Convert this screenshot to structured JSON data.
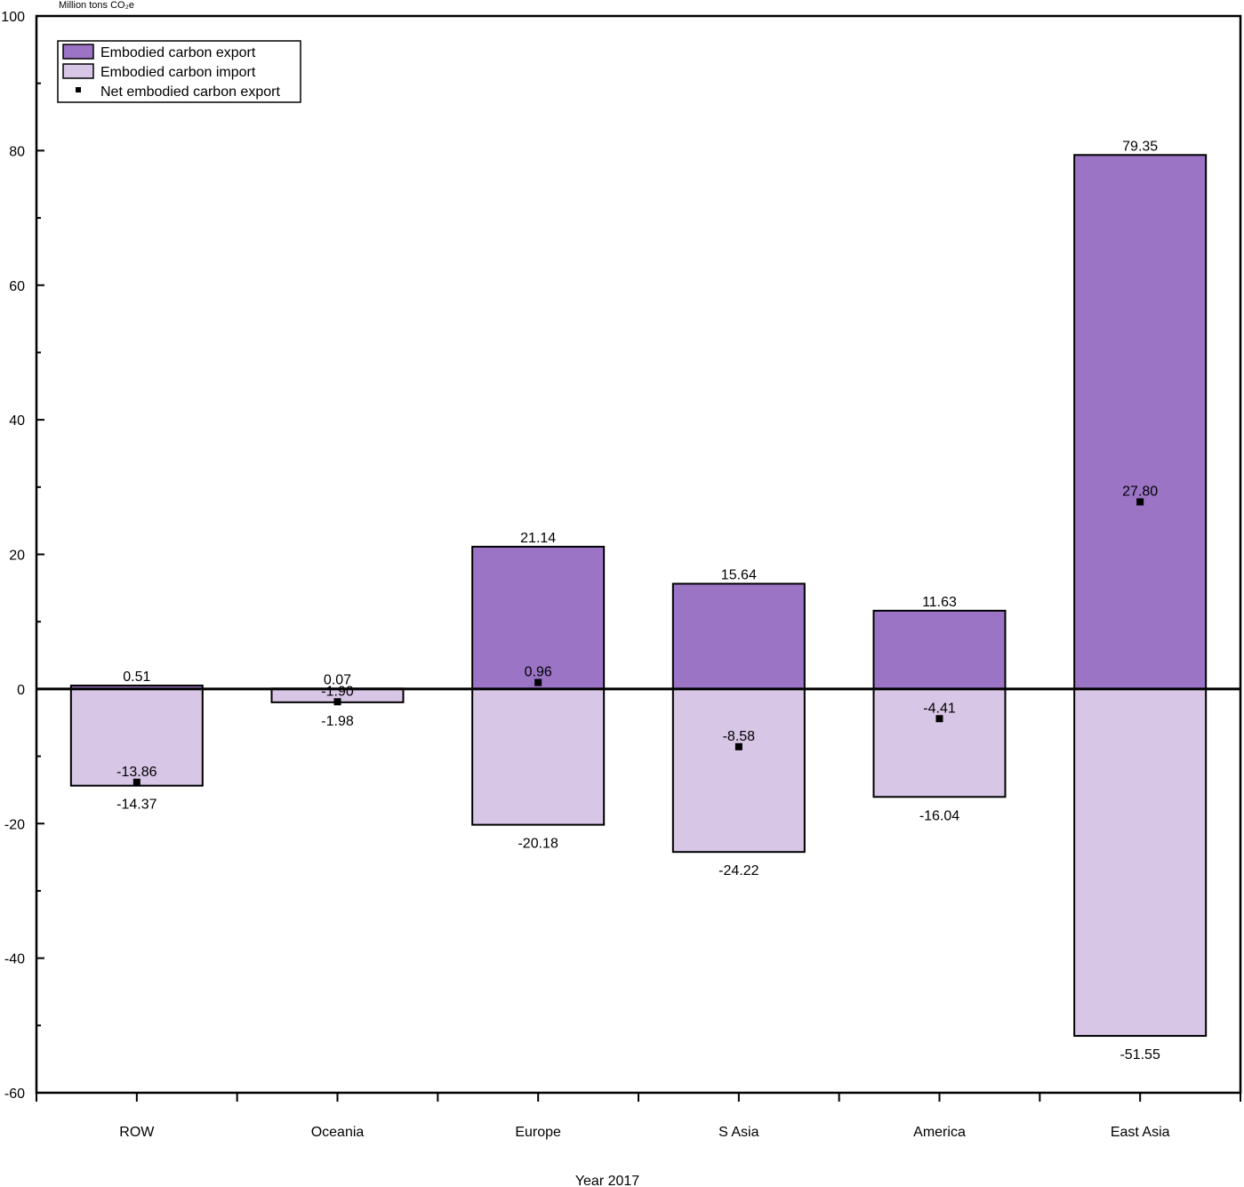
{
  "chart_data": {
    "type": "bar",
    "title": "",
    "ylabel": "Million tons CO₂e",
    "xlabel": "Year 2017",
    "ylim": [
      -60,
      100
    ],
    "yticks": [
      -60,
      -40,
      -20,
      0,
      20,
      40,
      60,
      80,
      100
    ],
    "categories": [
      "ROW",
      "Oceania",
      "Europe",
      "S Asia",
      "America",
      "East Asia"
    ],
    "series": [
      {
        "name": "Embodied carbon export",
        "kind": "bar",
        "color": "#9b74c6",
        "values": [
          0.51,
          0.07,
          21.14,
          15.64,
          11.63,
          79.35
        ],
        "labels": [
          "0.51",
          "0.07",
          "21.14",
          "15.64",
          "11.63",
          "79.35"
        ]
      },
      {
        "name": "Embodied carbon import",
        "kind": "bar",
        "color": "#d7c6e6",
        "values": [
          -14.37,
          -1.98,
          -20.18,
          -24.22,
          -16.04,
          -51.55
        ],
        "labels": [
          "-14.37",
          "-1.98",
          "-20.18",
          "-24.22",
          "-16.04",
          "-51.55"
        ]
      },
      {
        "name": "Net embodied carbon export",
        "kind": "marker",
        "color": "#000000",
        "values": [
          -13.86,
          -1.9,
          0.96,
          -8.58,
          -4.41,
          27.8
        ],
        "labels": [
          "-13.86",
          "-1.90",
          "0.96",
          "-8.58",
          "-4.41",
          "27.80"
        ]
      }
    ],
    "grid": false,
    "legend_position": "top-left"
  }
}
